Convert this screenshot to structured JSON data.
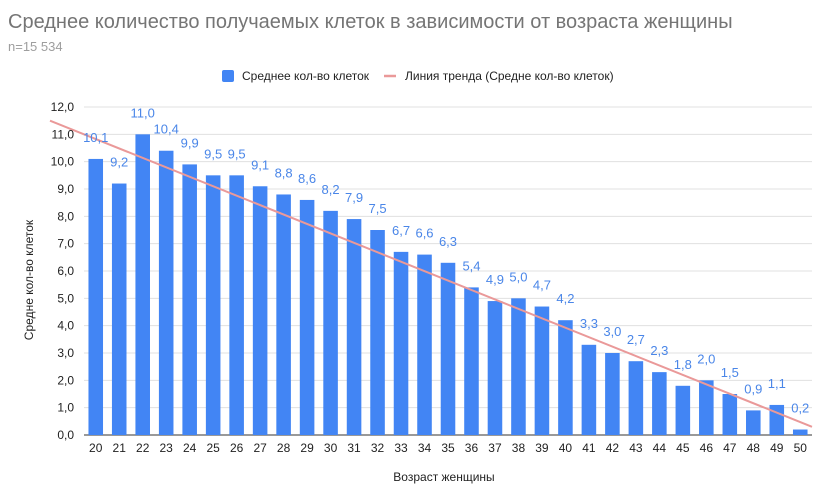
{
  "chart_data": {
    "type": "bar",
    "title": "Среднее количество получаемых клеток в зависимости от возраста женщины",
    "subtitle": "n=15 534",
    "xlabel": "Возраст женщины",
    "ylabel": "Средне кол-во клеток",
    "ylim": [
      0,
      12
    ],
    "yticks": [
      "0,0",
      "1,0",
      "2,0",
      "3,0",
      "4,0",
      "5,0",
      "6,0",
      "7,0",
      "8,0",
      "9,0",
      "10,0",
      "11,0",
      "12,0"
    ],
    "grid": true,
    "legend_position": "top",
    "categories": [
      "20",
      "21",
      "22",
      "23",
      "24",
      "25",
      "26",
      "27",
      "28",
      "29",
      "30",
      "31",
      "32",
      "33",
      "34",
      "35",
      "36",
      "37",
      "38",
      "39",
      "40",
      "41",
      "42",
      "43",
      "44",
      "45",
      "46",
      "47",
      "48",
      "49",
      "50"
    ],
    "series": [
      {
        "name": "Среднее кол-во клеток",
        "color": "#4285f4",
        "values": [
          10.1,
          9.2,
          11.0,
          10.4,
          9.9,
          9.5,
          9.5,
          9.1,
          8.8,
          8.6,
          8.2,
          7.9,
          7.5,
          6.7,
          6.6,
          6.3,
          5.4,
          4.9,
          5.0,
          4.7,
          4.2,
          3.3,
          3.0,
          2.7,
          2.3,
          1.8,
          2.0,
          1.5,
          0.9,
          1.1,
          0.2
        ],
        "data_labels": [
          "10,1",
          "9,2",
          "11,0",
          "10,4",
          "9,9",
          "9,5",
          "9,5",
          "9,1",
          "8,8",
          "8,6",
          "8,2",
          "7,9",
          "7,5",
          "6,7",
          "6,6",
          "6,3",
          "5,4",
          "4,9",
          "5,0",
          "4,7",
          "4,2",
          "3,3",
          "3,0",
          "2,7",
          "2,3",
          "1,8",
          "2,0",
          "1,5",
          "0,9",
          "1,1",
          "0,2"
        ],
        "label_color": "#4a86e8"
      }
    ],
    "trendline": {
      "name": "Линия тренда (Средне кол-во клеток)",
      "color": "#ea9999",
      "start_value": 11.5,
      "end_value": 0.3
    }
  }
}
